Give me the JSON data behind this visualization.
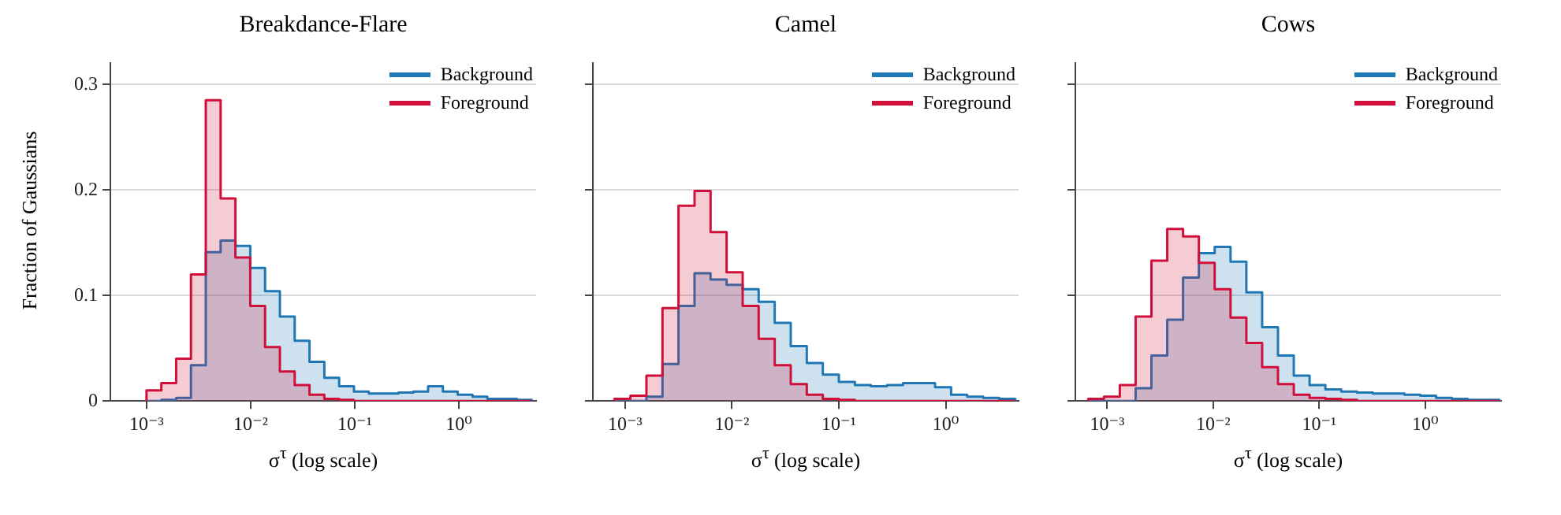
{
  "chart_data": [
    {
      "type": "histogram",
      "title": "Breakdance-Flare",
      "xlabel": "σ$^{τ}$ (log scale)",
      "ylabel": "Fraction of Gaussians",
      "log": "x",
      "grid": "y",
      "legend": "top right",
      "bins": [
        0.001,
        0.001388,
        0.001926,
        0.002673,
        0.003709,
        0.005146,
        0.007141,
        0.009909,
        0.01375,
        0.01908,
        0.02647,
        0.03673,
        0.05097,
        0.07072,
        0.09812,
        0.1362,
        0.1889,
        0.2622,
        0.3638,
        0.5048,
        0.7004,
        0.972,
        1.349,
        1.871,
        2.597,
        3.603,
        5
      ],
      "series": [
        {
          "name": "Background",
          "color": "#1f77b4",
          "values": [
            0,
            0.001,
            0.003,
            0.034,
            0.141,
            0.152,
            0.147,
            0.126,
            0.104,
            0.08,
            0.057,
            0.037,
            0.022,
            0.014,
            0.009,
            0.007,
            0.007,
            0.008,
            0.009,
            0.014,
            0.009,
            0.006,
            0.004,
            0.002,
            0.002,
            0.001
          ]
        },
        {
          "name": "Foreground",
          "color": "#d0103a",
          "values": [
            0.01,
            0.017,
            0.04,
            0.12,
            0.285,
            0.192,
            0.136,
            0.09,
            0.051,
            0.028,
            0.015,
            0.006,
            0.002,
            0.001,
            0,
            0,
            0,
            0,
            0,
            0,
            0,
            0,
            0,
            0,
            0,
            0
          ]
        }
      ],
      "xlim": [
        0.00045,
        5.5
      ],
      "xticks": [
        {
          "value": 0.001,
          "label": "10⁻³"
        },
        {
          "value": 0.01,
          "label": "10⁻²"
        },
        {
          "value": 0.1,
          "label": "10⁻¹"
        },
        {
          "value": 1,
          "label": "10⁰"
        }
      ],
      "ylim": [
        0,
        0.32
      ],
      "yticks": [
        0,
        0.1,
        0.2,
        0.3
      ]
    },
    {
      "type": "histogram",
      "title": "Camel",
      "xlabel": "σ$^{τ}$ (log scale)",
      "log": "x",
      "grid": "y",
      "legend": "top right",
      "tick_labels": "x",
      "bins": [
        0.000794,
        0.001122,
        0.001585,
        0.002239,
        0.003162,
        0.004467,
        0.00631,
        0.008913,
        0.01259,
        0.01778,
        0.02512,
        0.03548,
        0.05012,
        0.07079,
        0.1,
        0.1413,
        0.1995,
        0.2818,
        0.3981,
        0.5623,
        0.7943,
        1.122,
        1.585,
        2.239,
        3.162,
        4.467
      ],
      "series": [
        {
          "name": "Background",
          "color": "#1f77b4",
          "values": [
            0,
            0,
            0.004,
            0.035,
            0.09,
            0.121,
            0.115,
            0.11,
            0.106,
            0.094,
            0.074,
            0.052,
            0.036,
            0.025,
            0.018,
            0.015,
            0.014,
            0.015,
            0.017,
            0.017,
            0.013,
            0.006,
            0.004,
            0.003,
            0.002
          ]
        },
        {
          "name": "Foreground",
          "color": "#d0103a",
          "values": [
            0.002,
            0.005,
            0.024,
            0.088,
            0.185,
            0.199,
            0.16,
            0.122,
            0.09,
            0.059,
            0.034,
            0.016,
            0.006,
            0.002,
            0.001,
            0,
            0,
            0,
            0,
            0,
            0,
            0,
            0,
            0,
            0
          ]
        }
      ],
      "xlim": [
        0.0005,
        4.8
      ],
      "xticks": [
        {
          "value": 0.001,
          "label": "10⁻³"
        },
        {
          "value": 0.01,
          "label": "10⁻²"
        },
        {
          "value": 0.1,
          "label": "10⁻¹"
        },
        {
          "value": 1,
          "label": "10⁰"
        }
      ],
      "ylim": [
        0,
        0.32
      ],
      "yticks": [
        0,
        0.1,
        0.2,
        0.3
      ]
    },
    {
      "type": "histogram",
      "title": "Cows",
      "xlabel": "σ$^{τ}$ (log scale)",
      "log": "x",
      "grid": "y",
      "legend": "top right",
      "tick_labels": "x",
      "bins": [
        0.000661,
        0.000931,
        0.001314,
        0.001852,
        0.002611,
        0.003682,
        0.005192,
        0.007321,
        0.01032,
        0.01456,
        0.02053,
        0.02894,
        0.04081,
        0.05754,
        0.08113,
        0.1144,
        0.1613,
        0.2274,
        0.3207,
        0.4522,
        0.6376,
        0.8991,
        1.268,
        1.788,
        2.521,
        3.554,
        5.012
      ],
      "series": [
        {
          "name": "Background",
          "color": "#1f77b4",
          "values": [
            0,
            0,
            0,
            0.012,
            0.043,
            0.077,
            0.117,
            0.14,
            0.146,
            0.132,
            0.103,
            0.07,
            0.043,
            0.024,
            0.015,
            0.011,
            0.009,
            0.008,
            0.007,
            0.007,
            0.006,
            0.005,
            0.003,
            0.002,
            0.001,
            0.001
          ]
        },
        {
          "name": "Foreground",
          "color": "#d0103a",
          "values": [
            0.002,
            0.004,
            0.015,
            0.08,
            0.133,
            0.163,
            0.156,
            0.131,
            0.106,
            0.079,
            0.055,
            0.032,
            0.016,
            0.006,
            0.003,
            0.002,
            0.001,
            0,
            0,
            0,
            0,
            0,
            0,
            0,
            0,
            0
          ]
        }
      ],
      "xlim": [
        0.0005,
        5.2
      ],
      "xticks": [
        {
          "value": 0.001,
          "label": "10⁻³"
        },
        {
          "value": 0.01,
          "label": "10⁻²"
        },
        {
          "value": 0.1,
          "label": "10⁻¹"
        },
        {
          "value": 1,
          "label": "10⁰"
        }
      ],
      "ylim": [
        0,
        0.32
      ],
      "yticks": [
        0,
        0.1,
        0.2,
        0.3
      ]
    }
  ]
}
